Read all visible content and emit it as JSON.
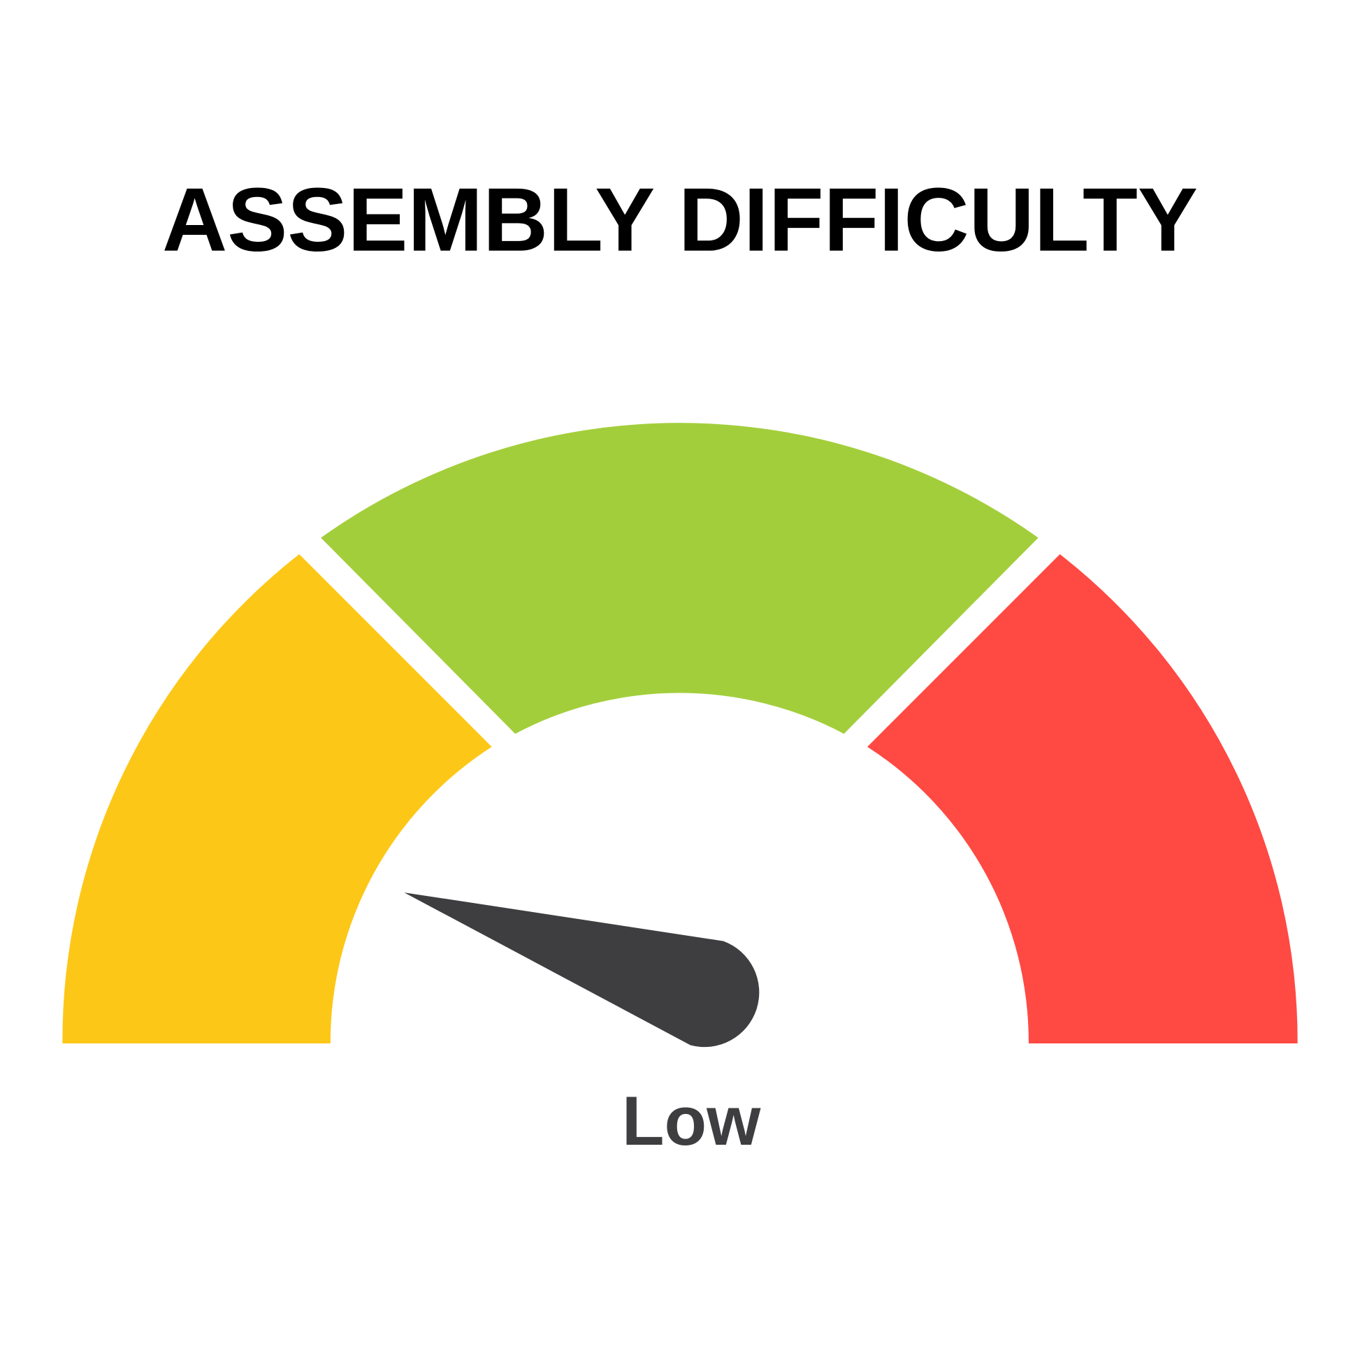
{
  "title": "ASSEMBLY DIFFICULTY",
  "reading_label": "Low",
  "gauge": {
    "segments": [
      {
        "color": "#fdc717"
      },
      {
        "color": "#a3ce3b"
      },
      {
        "color": "#ff4943"
      }
    ],
    "needle_color": "#3e3e40",
    "needle_value": 0.1
  }
}
